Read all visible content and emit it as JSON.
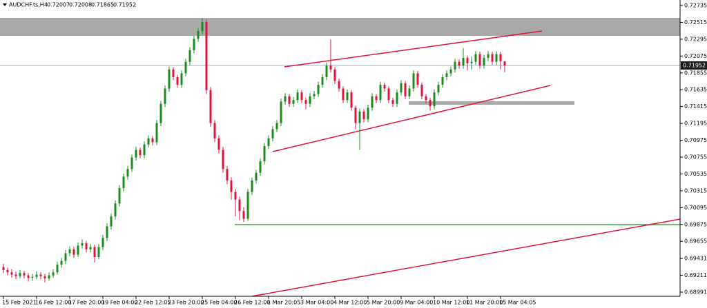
{
  "chart_data": {
    "type": "candlestick",
    "symbol": "AUDCHF.ts,H4",
    "colors": {
      "up": "#1e8a1e",
      "down": "#dc143c"
    },
    "ylim": [
      0.68937,
      0.72807
    ],
    "yticks": [
      0.72735,
      0.72515,
      0.72295,
      0.72075,
      0.71855,
      0.71635,
      0.71415,
      0.71195,
      0.70975,
      0.70755,
      0.70535,
      0.70315,
      0.70095,
      0.69875,
      0.69655,
      0.69431,
      0.69211,
      0.68991
    ],
    "categories": [
      "15 Feb 2021",
      null,
      null,
      null,
      null,
      null,
      null,
      null,
      "16 Feb 12:00",
      null,
      null,
      null,
      null,
      null,
      null,
      null,
      "17 Feb 20:00",
      null,
      null,
      null,
      null,
      null,
      null,
      null,
      "19 Feb 04:00",
      null,
      null,
      null,
      null,
      null,
      null,
      null,
      "22 Feb 12:05",
      null,
      null,
      null,
      null,
      null,
      null,
      null,
      "23 Feb 20:00",
      null,
      null,
      null,
      null,
      null,
      null,
      null,
      "25 Feb 04:00",
      null,
      null,
      null,
      null,
      null,
      null,
      null,
      "26 Feb 12:00",
      null,
      null,
      null,
      null,
      null,
      null,
      null,
      "1 Mar 20:05",
      null,
      null,
      null,
      null,
      null,
      null,
      null,
      "3 Mar 04:00",
      null,
      null,
      null,
      null,
      null,
      null,
      null,
      "4 Mar 12:00",
      null,
      null,
      null,
      null,
      null,
      null,
      null,
      "5 Mar 20:00",
      null,
      null,
      null,
      null,
      null,
      null,
      null,
      "9 Mar 04:00",
      null,
      null,
      null,
      null,
      null,
      null,
      null,
      "10 Mar 12:00",
      null,
      null,
      null,
      null,
      null,
      null,
      null,
      "11 Mar 20:00",
      null,
      null,
      null,
      null,
      null,
      null,
      null,
      "15 Mar 04:05",
      null
    ],
    "candles": [
      [
        0.6932,
        0.6936,
        0.6924,
        0.6928
      ],
      [
        0.6928,
        0.6931,
        0.6921,
        0.6925
      ],
      [
        0.6925,
        0.6929,
        0.6918,
        0.6922
      ],
      [
        0.6922,
        0.6926,
        0.6916,
        0.692
      ],
      [
        0.692,
        0.6928,
        0.6917,
        0.6924
      ],
      [
        0.6924,
        0.6927,
        0.6917,
        0.6921
      ],
      [
        0.6921,
        0.6924,
        0.6913,
        0.6918
      ],
      [
        0.6918,
        0.6923,
        0.6914,
        0.6919
      ],
      [
        0.6919,
        0.6926,
        0.6916,
        0.6922
      ],
      [
        0.6922,
        0.6925,
        0.6916,
        0.692
      ],
      [
        0.692,
        0.6923,
        0.6912,
        0.6917
      ],
      [
        0.6917,
        0.6925,
        0.6914,
        0.6921
      ],
      [
        0.6921,
        0.6929,
        0.6918,
        0.6925
      ],
      [
        0.6925,
        0.6939,
        0.6922,
        0.6935
      ],
      [
        0.6935,
        0.6944,
        0.6931,
        0.694
      ],
      [
        0.694,
        0.6954,
        0.6936,
        0.695
      ],
      [
        0.695,
        0.6959,
        0.6946,
        0.6955
      ],
      [
        0.6955,
        0.6958,
        0.6944,
        0.6948
      ],
      [
        0.6948,
        0.6964,
        0.6945,
        0.696
      ],
      [
        0.696,
        0.6968,
        0.6956,
        0.6963
      ],
      [
        0.6963,
        0.6966,
        0.6951,
        0.6955
      ],
      [
        0.6955,
        0.6962,
        0.6951,
        0.6958
      ],
      [
        0.6958,
        0.6961,
        0.6938,
        0.6945
      ],
      [
        0.6945,
        0.6962,
        0.6942,
        0.6958
      ],
      [
        0.6958,
        0.6974,
        0.6954,
        0.697
      ],
      [
        0.697,
        0.6989,
        0.6966,
        0.6985
      ],
      [
        0.6985,
        0.7002,
        0.6981,
        0.6998
      ],
      [
        0.6998,
        0.7019,
        0.6994,
        0.7015
      ],
      [
        0.7015,
        0.7039,
        0.7011,
        0.7035
      ],
      [
        0.7035,
        0.7054,
        0.7031,
        0.705
      ],
      [
        0.705,
        0.7064,
        0.7046,
        0.706
      ],
      [
        0.706,
        0.7079,
        0.7056,
        0.7075
      ],
      [
        0.7075,
        0.7089,
        0.7071,
        0.7085
      ],
      [
        0.7085,
        0.7088,
        0.7074,
        0.7078
      ],
      [
        0.7078,
        0.7096,
        0.7074,
        0.7092
      ],
      [
        0.7092,
        0.7104,
        0.7088,
        0.71
      ],
      [
        0.71,
        0.7103,
        0.7091,
        0.7095
      ],
      [
        0.7095,
        0.7124,
        0.7091,
        0.712
      ],
      [
        0.712,
        0.7149,
        0.7116,
        0.7145
      ],
      [
        0.7145,
        0.7169,
        0.7141,
        0.7165
      ],
      [
        0.7165,
        0.7194,
        0.7161,
        0.719
      ],
      [
        0.719,
        0.7193,
        0.7176,
        0.718
      ],
      [
        0.718,
        0.7183,
        0.7166,
        0.717
      ],
      [
        0.717,
        0.7189,
        0.7166,
        0.7185
      ],
      [
        0.7185,
        0.7204,
        0.7181,
        0.72
      ],
      [
        0.72,
        0.7219,
        0.7196,
        0.7215
      ],
      [
        0.7215,
        0.7234,
        0.7211,
        0.723
      ],
      [
        0.723,
        0.7244,
        0.7226,
        0.724
      ],
      [
        0.724,
        0.7257,
        0.7236,
        0.7252
      ],
      [
        0.7252,
        0.7255,
        0.7158,
        0.7163
      ],
      [
        0.7163,
        0.7167,
        0.7115,
        0.712
      ],
      [
        0.712,
        0.7124,
        0.7095,
        0.71
      ],
      [
        0.71,
        0.7104,
        0.708,
        0.7085
      ],
      [
        0.7085,
        0.7089,
        0.7055,
        0.706
      ],
      [
        0.706,
        0.7064,
        0.704,
        0.7045
      ],
      [
        0.7045,
        0.7049,
        0.702,
        0.703
      ],
      [
        0.703,
        0.7034,
        0.6998,
        0.702
      ],
      [
        0.702,
        0.7024,
        0.6993,
        0.7005
      ],
      [
        0.7005,
        0.701,
        0.6991,
        0.6995
      ],
      [
        0.6995,
        0.7034,
        0.6992,
        0.703
      ],
      [
        0.703,
        0.7049,
        0.7026,
        0.7045
      ],
      [
        0.7045,
        0.7059,
        0.7041,
        0.7055
      ],
      [
        0.7055,
        0.7074,
        0.7051,
        0.707
      ],
      [
        0.707,
        0.7094,
        0.7066,
        0.709
      ],
      [
        0.709,
        0.7104,
        0.7086,
        0.71
      ],
      [
        0.71,
        0.7116,
        0.7096,
        0.7112
      ],
      [
        0.7112,
        0.7124,
        0.7108,
        0.712
      ],
      [
        0.712,
        0.7152,
        0.7116,
        0.7148
      ],
      [
        0.7148,
        0.7159,
        0.7144,
        0.7155
      ],
      [
        0.7155,
        0.7158,
        0.7141,
        0.7145
      ],
      [
        0.7145,
        0.7154,
        0.7141,
        0.715
      ],
      [
        0.715,
        0.7164,
        0.7146,
        0.716
      ],
      [
        0.716,
        0.7163,
        0.7146,
        0.715
      ],
      [
        0.715,
        0.7153,
        0.7138,
        0.7145
      ],
      [
        0.7145,
        0.7159,
        0.7141,
        0.7155
      ],
      [
        0.7155,
        0.7162,
        0.7151,
        0.7158
      ],
      [
        0.7158,
        0.7174,
        0.7154,
        0.717
      ],
      [
        0.717,
        0.7184,
        0.7166,
        0.718
      ],
      [
        0.718,
        0.7199,
        0.7176,
        0.7195
      ],
      [
        0.7195,
        0.7229,
        0.7186,
        0.719
      ],
      [
        0.719,
        0.7193,
        0.7171,
        0.7175
      ],
      [
        0.7175,
        0.7178,
        0.7161,
        0.7165
      ],
      [
        0.7165,
        0.7168,
        0.7146,
        0.715
      ],
      [
        0.715,
        0.7164,
        0.7146,
        0.716
      ],
      [
        0.716,
        0.7163,
        0.7136,
        0.714
      ],
      [
        0.714,
        0.7143,
        0.7112,
        0.712
      ],
      [
        0.712,
        0.7139,
        0.7085,
        0.7135
      ],
      [
        0.7135,
        0.7138,
        0.7121,
        0.7125
      ],
      [
        0.7125,
        0.7144,
        0.7121,
        0.714
      ],
      [
        0.714,
        0.7159,
        0.7136,
        0.7155
      ],
      [
        0.7155,
        0.7158,
        0.7146,
        0.715
      ],
      [
        0.715,
        0.7174,
        0.7146,
        0.717
      ],
      [
        0.717,
        0.7173,
        0.7161,
        0.7165
      ],
      [
        0.7165,
        0.7168,
        0.7146,
        0.715
      ],
      [
        0.715,
        0.7153,
        0.7141,
        0.7145
      ],
      [
        0.7145,
        0.7164,
        0.7141,
        0.716
      ],
      [
        0.716,
        0.7176,
        0.7156,
        0.7172
      ],
      [
        0.7172,
        0.7175,
        0.7151,
        0.7155
      ],
      [
        0.7155,
        0.7169,
        0.7151,
        0.7165
      ],
      [
        0.7165,
        0.7189,
        0.7161,
        0.7185
      ],
      [
        0.7185,
        0.7188,
        0.7166,
        0.717
      ],
      [
        0.717,
        0.7173,
        0.7151,
        0.7155
      ],
      [
        0.7155,
        0.7158,
        0.7146,
        0.715
      ],
      [
        0.715,
        0.7153,
        0.7136,
        0.7142
      ],
      [
        0.7142,
        0.7164,
        0.7138,
        0.716
      ],
      [
        0.716,
        0.7174,
        0.7156,
        0.717
      ],
      [
        0.717,
        0.7184,
        0.7166,
        0.718
      ],
      [
        0.718,
        0.7189,
        0.7176,
        0.7185
      ],
      [
        0.7185,
        0.7194,
        0.7181,
        0.719
      ],
      [
        0.719,
        0.7204,
        0.7186,
        0.72
      ],
      [
        0.72,
        0.7203,
        0.7191,
        0.7195
      ],
      [
        0.7195,
        0.7218,
        0.7191,
        0.7205
      ],
      [
        0.7205,
        0.7208,
        0.7189,
        0.7198
      ],
      [
        0.7198,
        0.7207,
        0.719,
        0.72
      ],
      [
        0.72,
        0.7214,
        0.7196,
        0.721
      ],
      [
        0.721,
        0.7213,
        0.7191,
        0.7195
      ],
      [
        0.7195,
        0.7209,
        0.7191,
        0.7205
      ],
      [
        0.7205,
        0.7214,
        0.7201,
        0.721
      ],
      [
        0.721,
        0.7213,
        0.7196,
        0.72
      ],
      [
        0.72,
        0.7214,
        0.7196,
        0.721
      ],
      [
        0.721,
        0.7213,
        0.719,
        0.72007
      ],
      [
        0.72007,
        0.72008,
        0.71865,
        0.71952
      ]
    ]
  }
}
